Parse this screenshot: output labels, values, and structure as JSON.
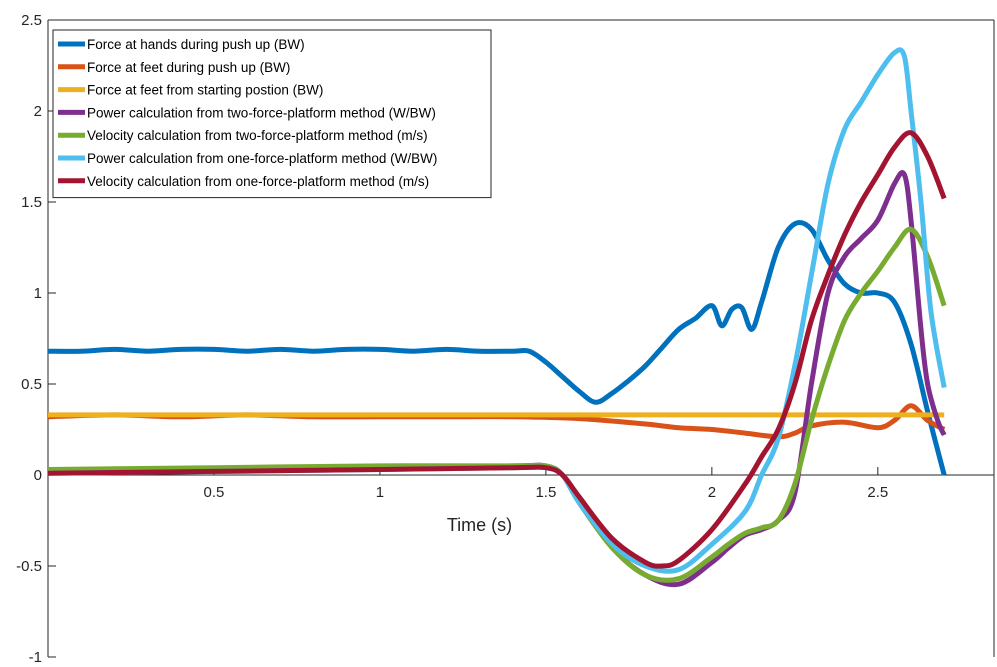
{
  "chart_data": {
    "type": "line",
    "title": "",
    "xlabel": "Time (s)",
    "ylabel": "",
    "xlim": [
      0,
      2.85
    ],
    "ylim": [
      -1,
      2.5
    ],
    "xticks": [
      0.5,
      1,
      1.5,
      2,
      2.5
    ],
    "xtick_labels": [
      "0.5",
      "1",
      "1.5",
      "2",
      "2.5"
    ],
    "yticks": [
      -1,
      -0.5,
      0,
      0.5,
      1,
      1.5,
      2,
      2.5
    ],
    "ytick_labels": [
      "-1",
      "-0.5",
      "0",
      "0.5",
      "1",
      "1.5",
      "2",
      "2.5"
    ],
    "grid": false,
    "legend_position": "top-left",
    "series": [
      {
        "name": "Force at hands during push up (BW)",
        "color": "#0072BD",
        "x": [
          0,
          0.1,
          0.2,
          0.3,
          0.4,
          0.5,
          0.6,
          0.7,
          0.8,
          0.9,
          1.0,
          1.1,
          1.2,
          1.3,
          1.4,
          1.45,
          1.5,
          1.55,
          1.6,
          1.65,
          1.7,
          1.75,
          1.8,
          1.85,
          1.9,
          1.95,
          2.0,
          2.03,
          2.06,
          2.09,
          2.12,
          2.15,
          2.2,
          2.25,
          2.3,
          2.35,
          2.4,
          2.45,
          2.5,
          2.55,
          2.6,
          2.65,
          2.7
        ],
        "y": [
          0.68,
          0.68,
          0.69,
          0.68,
          0.69,
          0.69,
          0.68,
          0.69,
          0.68,
          0.69,
          0.69,
          0.68,
          0.69,
          0.68,
          0.68,
          0.68,
          0.62,
          0.54,
          0.46,
          0.4,
          0.45,
          0.52,
          0.6,
          0.7,
          0.8,
          0.86,
          0.93,
          0.82,
          0.91,
          0.92,
          0.8,
          0.95,
          1.25,
          1.38,
          1.35,
          1.18,
          1.05,
          1.0,
          1.0,
          0.95,
          0.72,
          0.35,
          0.0
        ]
      },
      {
        "name": "Force at feet during push up (BW)",
        "color": "#D95319",
        "x": [
          0,
          0.2,
          0.4,
          0.6,
          0.8,
          1.0,
          1.2,
          1.4,
          1.6,
          1.8,
          1.9,
          2.0,
          2.1,
          2.2,
          2.25,
          2.3,
          2.4,
          2.5,
          2.55,
          2.6,
          2.65,
          2.7
        ],
        "y": [
          0.32,
          0.33,
          0.32,
          0.33,
          0.32,
          0.32,
          0.32,
          0.32,
          0.31,
          0.28,
          0.26,
          0.25,
          0.23,
          0.21,
          0.23,
          0.27,
          0.29,
          0.26,
          0.3,
          0.38,
          0.3,
          0.25
        ]
      },
      {
        "name": "Force at feet from starting postion (BW)",
        "color": "#EDB120",
        "x": [
          0,
          2.7
        ],
        "y": [
          0.33,
          0.33
        ]
      },
      {
        "name": "Power calculation from two-force-platform method (W/BW)",
        "color": "#7E2F8E",
        "x": [
          0,
          0.5,
          1.0,
          1.4,
          1.5,
          1.55,
          1.6,
          1.7,
          1.8,
          1.9,
          2.0,
          2.05,
          2.1,
          2.15,
          2.2,
          2.25,
          2.3,
          2.35,
          2.4,
          2.45,
          2.5,
          2.55,
          2.58,
          2.6,
          2.63,
          2.65,
          2.68,
          2.7
        ],
        "y": [
          0.03,
          0.03,
          0.04,
          0.05,
          0.05,
          0.0,
          -0.15,
          -0.4,
          -0.55,
          -0.6,
          -0.48,
          -0.4,
          -0.33,
          -0.3,
          -0.25,
          -0.1,
          0.5,
          1.0,
          1.2,
          1.3,
          1.4,
          1.6,
          1.65,
          1.4,
          0.8,
          0.5,
          0.3,
          0.22
        ]
      },
      {
        "name": "Velocity calculation from two-force-platform method (m/s)",
        "color": "#77AC30",
        "x": [
          0,
          0.5,
          1.0,
          1.4,
          1.5,
          1.55,
          1.6,
          1.7,
          1.8,
          1.9,
          2.0,
          2.05,
          2.1,
          2.15,
          2.2,
          2.25,
          2.3,
          2.35,
          2.4,
          2.45,
          2.5,
          2.55,
          2.6,
          2.65,
          2.7
        ],
        "y": [
          0.03,
          0.04,
          0.05,
          0.05,
          0.05,
          0.0,
          -0.15,
          -0.4,
          -0.55,
          -0.57,
          -0.45,
          -0.38,
          -0.32,
          -0.29,
          -0.25,
          -0.05,
          0.3,
          0.6,
          0.85,
          1.0,
          1.12,
          1.25,
          1.35,
          1.2,
          0.93
        ]
      },
      {
        "name": "Power calculation from one-force-platform method (W/BW)",
        "color": "#4DBEEE",
        "x": [
          0,
          0.5,
          1.0,
          1.4,
          1.5,
          1.55,
          1.6,
          1.7,
          1.8,
          1.9,
          2.0,
          2.1,
          2.15,
          2.2,
          2.25,
          2.3,
          2.35,
          2.4,
          2.45,
          2.5,
          2.55,
          2.58,
          2.6,
          2.63,
          2.66,
          2.7
        ],
        "y": [
          0.01,
          0.02,
          0.03,
          0.04,
          0.04,
          0.0,
          -0.15,
          -0.38,
          -0.5,
          -0.52,
          -0.38,
          -0.2,
          0.0,
          0.2,
          0.6,
          1.1,
          1.6,
          1.9,
          2.05,
          2.2,
          2.32,
          2.3,
          2.0,
          1.5,
          0.9,
          0.48
        ]
      },
      {
        "name": "Velocity calculation from one-force-platform method (m/s)",
        "color": "#A2142F",
        "x": [
          0,
          0.5,
          1.0,
          1.4,
          1.5,
          1.55,
          1.6,
          1.7,
          1.8,
          1.85,
          1.9,
          2.0,
          2.1,
          2.15,
          2.2,
          2.25,
          2.3,
          2.35,
          2.4,
          2.45,
          2.5,
          2.55,
          2.6,
          2.65,
          2.7
        ],
        "y": [
          0.01,
          0.02,
          0.03,
          0.04,
          0.04,
          0.0,
          -0.12,
          -0.35,
          -0.48,
          -0.5,
          -0.47,
          -0.3,
          -0.05,
          0.1,
          0.25,
          0.5,
          0.85,
          1.1,
          1.32,
          1.5,
          1.65,
          1.8,
          1.88,
          1.75,
          1.52
        ]
      }
    ]
  }
}
